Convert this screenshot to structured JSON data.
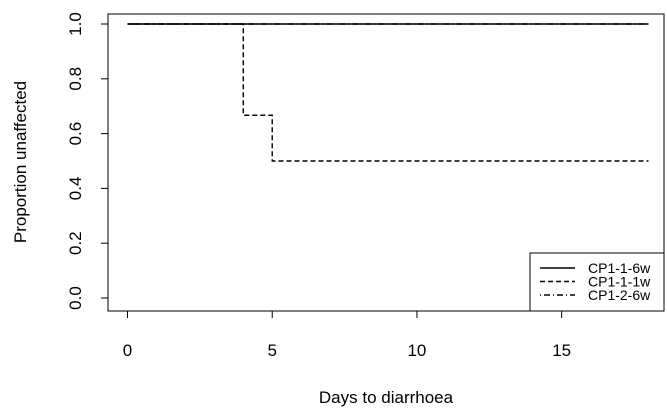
{
  "chart_data": {
    "type": "line",
    "step": true,
    "xlabel": "Days to diarrhoea",
    "ylabel": "Proportion unaffected",
    "xlim": [
      0,
      18
    ],
    "ylim": [
      0,
      1
    ],
    "x_ticks": [
      0,
      5,
      10,
      15
    ],
    "x_tick_labels": [
      "0",
      "5",
      "10",
      "15"
    ],
    "y_ticks": [
      0.0,
      0.2,
      0.4,
      0.6,
      0.8,
      1.0
    ],
    "y_tick_labels": [
      "0.0",
      "0.2",
      "0.4",
      "0.6",
      "0.8",
      "1.0"
    ],
    "grid": false,
    "legend_position": "bottom-right",
    "series": [
      {
        "name": "CP1-1-6w",
        "line_style": "solid",
        "x": [
          0,
          18
        ],
        "y": [
          1.0,
          1.0
        ]
      },
      {
        "name": "CP1-1-1w",
        "line_style": "dashed",
        "x": [
          0,
          4,
          5,
          18
        ],
        "y": [
          1.0,
          0.667,
          0.5,
          0.5
        ]
      },
      {
        "name": "CP1-2-6w",
        "line_style": "dotdash",
        "x": [
          0,
          18
        ],
        "y": [
          1.0,
          1.0
        ]
      }
    ],
    "colors": {
      "line": "#000000",
      "background": "#ffffff"
    }
  }
}
